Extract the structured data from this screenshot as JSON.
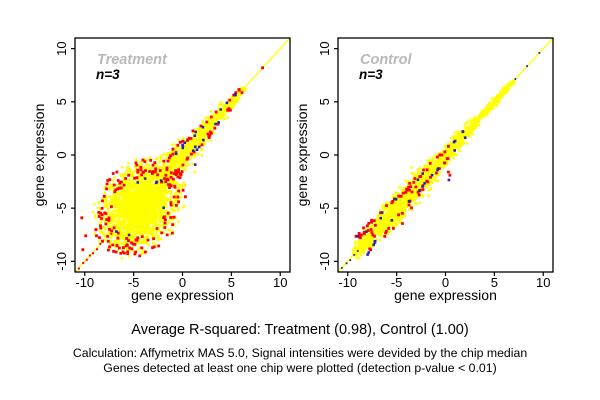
{
  "footer": {
    "r_squared_line": "Average R-squared: Treatment (0.98), Control (1.00)",
    "calc_line1": "Calculation: Affymetrix MAS 5.0, Signal intensities were devided by the chip median",
    "calc_line2": "Genes detected at least one chip were plotted (detection p-value < 0.01)"
  },
  "chart_data": {
    "type": "scatter",
    "description": "Two gene-expression correlation scatter plots (replicate vs replicate), dense point clouds along the identity line",
    "r_squared": {
      "Treatment": 0.98,
      "Control": 1.0
    },
    "palette": {
      "main_points": "#ffff00",
      "outlier_red": "#ff0000",
      "outlier_blue": "#2222cc",
      "dark_line_dots": "#202090",
      "identity_line": "#ffff00",
      "title_gray": "#b9b9b9"
    },
    "panels": [
      {
        "title": "Treatment",
        "annotation": "n=3",
        "xlabel": "gene expression",
        "ylabel": "gene expression",
        "xlim": [
          -11,
          11
        ],
        "ylim": [
          -11,
          11
        ],
        "xticks": [
          -10,
          -5,
          0,
          5,
          10
        ],
        "yticks": [
          -10,
          -5,
          0,
          5,
          10
        ],
        "line_color": "#ffff00",
        "seed": 7,
        "clusters": [
          {
            "type": "band",
            "color": "#ffff00",
            "size": 2.4,
            "n": 1400,
            "tmin": -5.5,
            "tmax": 6.4,
            "s0": 1.0,
            "s1": 0.1,
            "bias": 1.5
          },
          {
            "type": "blob",
            "color": "#ffff00",
            "size": 2.4,
            "n": 1700,
            "cx": -4.4,
            "cy": -4.9,
            "sa": 2.1,
            "sp": 1.6,
            "cap": 2.6
          },
          {
            "type": "halo",
            "color": "#ffff00",
            "size": 2.6,
            "n": 70,
            "cx": -4.4,
            "cy": -4.9,
            "sa": 2.2,
            "sp": 1.7,
            "r0": 1.35,
            "r1": 2.15
          },
          {
            "type": "halo",
            "color": "#ff0000",
            "size": 2.8,
            "n": 150,
            "cx": -4.4,
            "cy": -4.9,
            "sa": 2.25,
            "sp": 1.75,
            "r0": 1.45,
            "r1": 2.4
          },
          {
            "type": "edge",
            "color": "#ff0000",
            "size": 2.8,
            "n": 55,
            "tmin": -2.2,
            "tmax": 6.0,
            "s0": 0.55,
            "s1": 0.12,
            "f0": 1.3,
            "f1": 2.6,
            "bias": 1.2
          },
          {
            "type": "dashes",
            "color": "#ff0000",
            "size": 2.0,
            "tmin": -10.6,
            "tmax": -7.3,
            "step": 0.36,
            "jitter": 0.1
          },
          {
            "type": "edge",
            "color": "#2222cc",
            "size": 2.6,
            "n": 20,
            "tmin": -2.5,
            "tmax": 5.6,
            "s0": 0.55,
            "s1": 0.12,
            "f0": 1.0,
            "f1": 2.0,
            "bias": 1
          },
          {
            "type": "halo",
            "color": "#2222cc",
            "size": 2.6,
            "n": 8,
            "cx": -4.4,
            "cy": -4.9,
            "sa": 2.1,
            "sp": 1.6,
            "r0": 1.1,
            "r1": 1.8
          },
          {
            "type": "points",
            "color": "#ff0000",
            "size": 2.8,
            "pts": [
              [
                8.2,
                8.2
              ],
              [
                -9.9,
                -7.6
              ],
              [
                -10.3,
                -5.9
              ],
              [
                -10.2,
                -8.9
              ]
            ]
          },
          {
            "type": "points",
            "color": "#2222cc",
            "size": 2.6,
            "pts": [
              [
                1.3,
                -0.9
              ]
            ]
          }
        ]
      },
      {
        "title": "Control",
        "annotation": "n=3",
        "xlabel": "gene expression",
        "ylabel": "gene expression",
        "xlim": [
          -11,
          11
        ],
        "ylim": [
          -11,
          11
        ],
        "xticks": [
          -10,
          -5,
          0,
          5,
          10
        ],
        "yticks": [
          -10,
          -5,
          0,
          5,
          10
        ],
        "line_color": "#ffff00",
        "seed": 13,
        "clusters": [
          {
            "type": "band",
            "color": "#ffff00",
            "size": 2.4,
            "n": 500,
            "tmin": -9.4,
            "tmax": -2.5,
            "s0": 0.3,
            "s1": 0.5,
            "bias": 0.85
          },
          {
            "type": "band",
            "color": "#ffff00",
            "size": 2.4,
            "n": 900,
            "tmin": -2.5,
            "tmax": 7.0,
            "s0": 0.45,
            "s1": 0.08,
            "bias": 1.6
          },
          {
            "type": "blob",
            "color": "#ffff00",
            "size": 2.4,
            "n": 420,
            "cx": -5.2,
            "cy": -5.3,
            "sa": 1.6,
            "sp": 0.55,
            "cap": 2.4
          },
          {
            "type": "blob",
            "color": "#ffff00",
            "size": 2.4,
            "n": 80,
            "cx": -8.1,
            "cy": -8.35,
            "sa": 0.5,
            "sp": 0.32,
            "cap": 2.2
          },
          {
            "type": "edge",
            "color": "#ff0000",
            "size": 2.8,
            "n": 60,
            "tmin": -8.8,
            "tmax": 0.6,
            "s0": 0.55,
            "s1": 0.18,
            "f0": 1.2,
            "f1": 2.2,
            "bias": 1
          },
          {
            "type": "halo",
            "color": "#ff0000",
            "size": 2.8,
            "n": 18,
            "cx": -5.2,
            "cy": -5.3,
            "sa": 1.8,
            "sp": 0.75,
            "r0": 1.25,
            "r1": 1.9
          },
          {
            "type": "edge",
            "color": "#2222cc",
            "size": 2.6,
            "n": 26,
            "tmin": -8.8,
            "tmax": 2.2,
            "s0": 0.5,
            "s1": 0.15,
            "f0": 1.1,
            "f1": 2.0,
            "bias": 1
          },
          {
            "type": "dashes",
            "color": "#202090",
            "size": 1.8,
            "tmin": -10.6,
            "tmax": -8.7,
            "step": 0.4,
            "jitter": 0.08
          },
          {
            "type": "points",
            "color": "#202090",
            "size": 1.8,
            "pts": [
              [
                7.15,
                7.15
              ],
              [
                8.35,
                8.35
              ],
              [
                9.6,
                9.6
              ]
            ]
          },
          {
            "type": "points",
            "color": "#ff0000",
            "size": 2.8,
            "pts": [
              [
                0.3,
                -1.6
              ],
              [
                0.45,
                -1.9
              ],
              [
                -8.3,
                -7.4
              ],
              [
                -7.9,
                -7.1
              ]
            ]
          },
          {
            "type": "points",
            "color": "#2222cc",
            "size": 2.6,
            "pts": [
              [
                0.35,
                -2.35
              ],
              [
                -7.2,
                -8.1
              ]
            ]
          }
        ]
      }
    ]
  }
}
